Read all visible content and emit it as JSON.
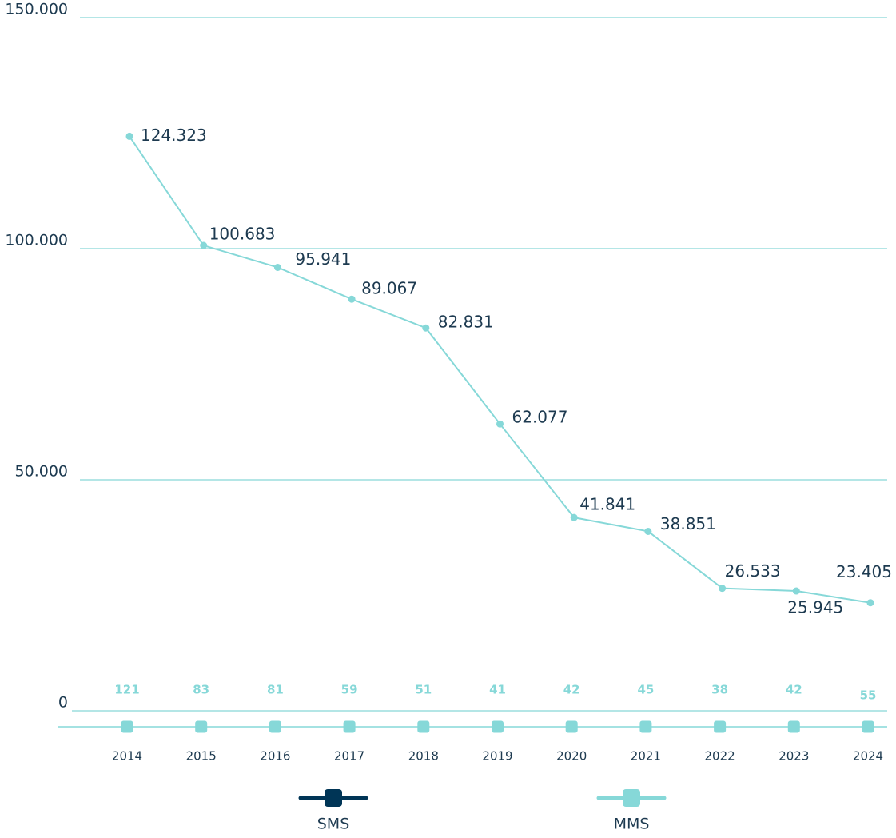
{
  "chart_data": {
    "type": "line",
    "categories": [
      "2014",
      "2015",
      "2016",
      "2017",
      "2018",
      "2019",
      "2020",
      "2021",
      "2022",
      "2023",
      "2024"
    ],
    "series": [
      {
        "name": "SMS",
        "color": "#003556",
        "line_color": "#86d8d8",
        "values": [
          124323,
          100683,
          95941,
          89067,
          82831,
          62077,
          41841,
          38851,
          26533,
          25945,
          23405
        ],
        "value_labels": [
          "124.323",
          "100.683",
          "95.941",
          "89.067",
          "82.831",
          "62.077",
          "41.841",
          "38.851",
          "26.533",
          "25.945",
          "23.405"
        ]
      },
      {
        "name": "MMS",
        "color": "#86d8d8",
        "values": [
          121,
          83,
          81,
          59,
          51,
          41,
          42,
          45,
          38,
          42,
          55
        ]
      }
    ],
    "ylim": [
      0,
      150000
    ],
    "yticks": [
      0,
      {
        "value": 50000,
        "label": "50.000"
      },
      {
        "value": 100000,
        "label": "100.000"
      },
      {
        "value": 150000,
        "label": "150.000"
      }
    ],
    "grid": true,
    "legend": "bottom"
  }
}
